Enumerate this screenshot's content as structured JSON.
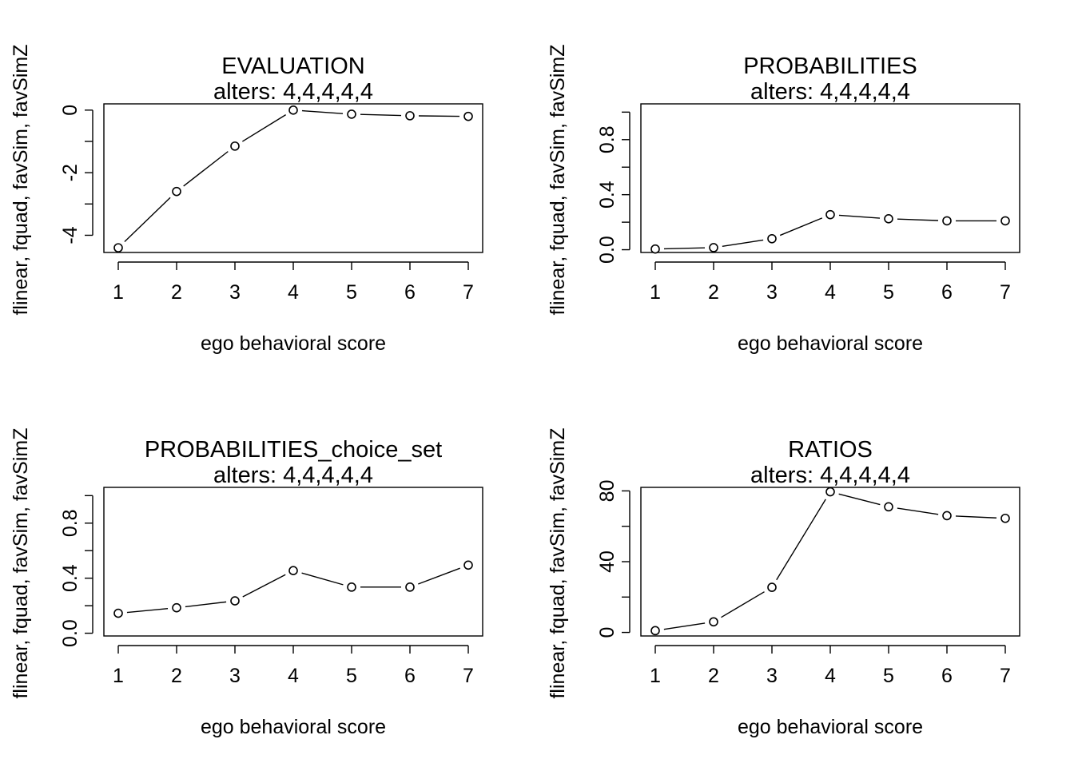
{
  "chart_data": [
    {
      "type": "line",
      "title": "EVALUATION",
      "subtitle": "alters: 4,4,4,4,4",
      "xlabel": "ego behavioral score",
      "ylabel": "flinear, fquad, favSim, favSimZ",
      "x": [
        1,
        2,
        3,
        4,
        5,
        6,
        7
      ],
      "series": [
        {
          "values": [
            -4.4,
            -2.6,
            -1.15,
            0.0,
            -0.13,
            -0.18,
            -0.2
          ]
        }
      ],
      "xlim": [
        1,
        7
      ],
      "ylim": [
        -4.55,
        0.2
      ],
      "yticks_major": [
        -4,
        -2,
        0
      ],
      "yticks_minor": [
        -3,
        -1
      ],
      "xticks": [
        1,
        2,
        3,
        4,
        5,
        6,
        7
      ],
      "grid": false,
      "legend": "none"
    },
    {
      "type": "line",
      "title": "PROBABILITIES",
      "subtitle": "alters: 4,4,4,4,4",
      "xlabel": "ego behavioral score",
      "ylabel": "flinear, fquad, favSim, favSimZ",
      "x": [
        1,
        2,
        3,
        4,
        5,
        6,
        7
      ],
      "series": [
        {
          "values": [
            0.005,
            0.015,
            0.08,
            0.255,
            0.225,
            0.21,
            0.21
          ]
        }
      ],
      "xlim": [
        1,
        7
      ],
      "ylim": [
        -0.02,
        1.06
      ],
      "yticks_major": [
        0.0,
        0.4,
        0.8
      ],
      "yticks_minor": [
        0.2,
        0.6,
        1.0
      ],
      "xticks": [
        1,
        2,
        3,
        4,
        5,
        6,
        7
      ],
      "grid": false,
      "legend": "none"
    },
    {
      "type": "line",
      "title": "PROBABILITIES_choice_set",
      "subtitle": "alters: 4,4,4,4,4",
      "xlabel": "ego behavioral score",
      "ylabel": "flinear, fquad, favSim, favSimZ",
      "x": [
        1,
        2,
        3,
        4,
        5,
        6,
        7
      ],
      "series": [
        {
          "values": [
            0.145,
            0.185,
            0.235,
            0.455,
            0.335,
            0.335,
            0.495
          ]
        }
      ],
      "xlim": [
        1,
        7
      ],
      "ylim": [
        -0.02,
        1.06
      ],
      "yticks_major": [
        0.0,
        0.4,
        0.8
      ],
      "yticks_minor": [
        0.2,
        0.6,
        1.0
      ],
      "xticks": [
        1,
        2,
        3,
        4,
        5,
        6,
        7
      ],
      "grid": false,
      "legend": "none"
    },
    {
      "type": "line",
      "title": "RATIOS",
      "subtitle": "alters: 4,4,4,4,4",
      "xlabel": "ego behavioral score",
      "ylabel": "flinear, fquad, favSim, favSimZ",
      "x": [
        1,
        2,
        3,
        4,
        5,
        6,
        7
      ],
      "series": [
        {
          "values": [
            1,
            6,
            25.5,
            79.5,
            71,
            66,
            64.5
          ]
        }
      ],
      "xlim": [
        1,
        7
      ],
      "ylim": [
        -2,
        82
      ],
      "yticks_major": [
        0,
        40,
        80
      ],
      "yticks_minor": [
        20,
        60
      ],
      "xticks": [
        1,
        2,
        3,
        4,
        5,
        6,
        7
      ],
      "grid": false,
      "legend": "none"
    }
  ]
}
